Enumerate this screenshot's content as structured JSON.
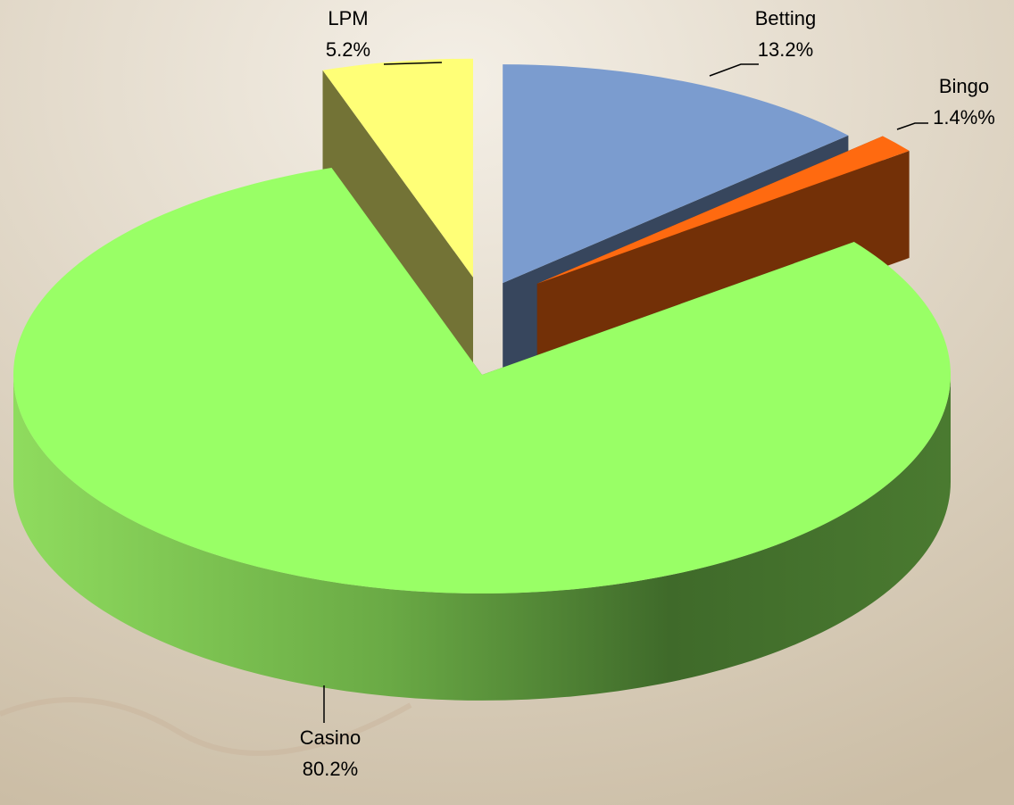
{
  "chart_data": {
    "type": "pie",
    "categories": [
      "Betting",
      "Bingo",
      "Casino",
      "LPM"
    ],
    "values": [
      13.2,
      1.4,
      80.2,
      5.2
    ],
    "value_labels": [
      "13.2%",
      "1.4%%",
      "80.2%",
      "5.2%"
    ],
    "colors": [
      "#7b9ccf",
      "#ff6a10",
      "#99ff66",
      "#ffff77"
    ]
  }
}
